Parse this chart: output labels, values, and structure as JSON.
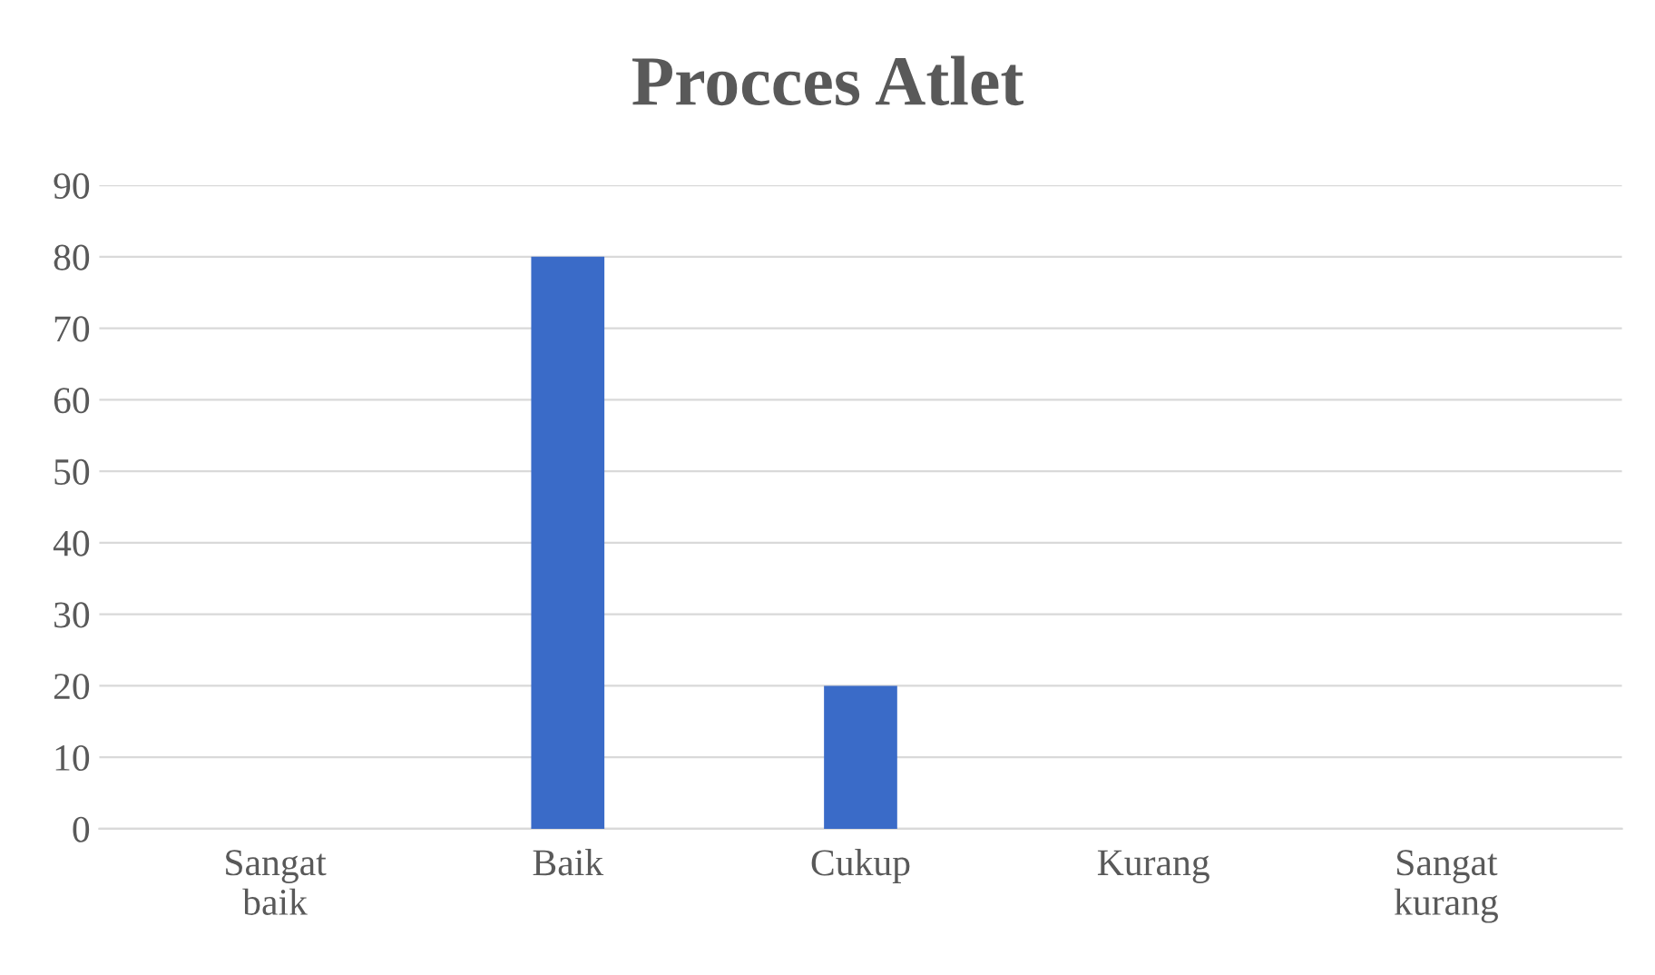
{
  "chart_data": {
    "type": "bar",
    "title": "Procces Atlet",
    "categories": [
      "Sangat\nbaik",
      "Baik",
      "Cukup",
      "Kurang",
      "Sangat\nkurang"
    ],
    "values": [
      0,
      80,
      20,
      0,
      0
    ],
    "color": "#3a6bc8",
    "ylim": [
      0,
      90
    ],
    "yticks": [
      0,
      10,
      20,
      30,
      40,
      50,
      60,
      70,
      80,
      90
    ],
    "grid": "y"
  }
}
